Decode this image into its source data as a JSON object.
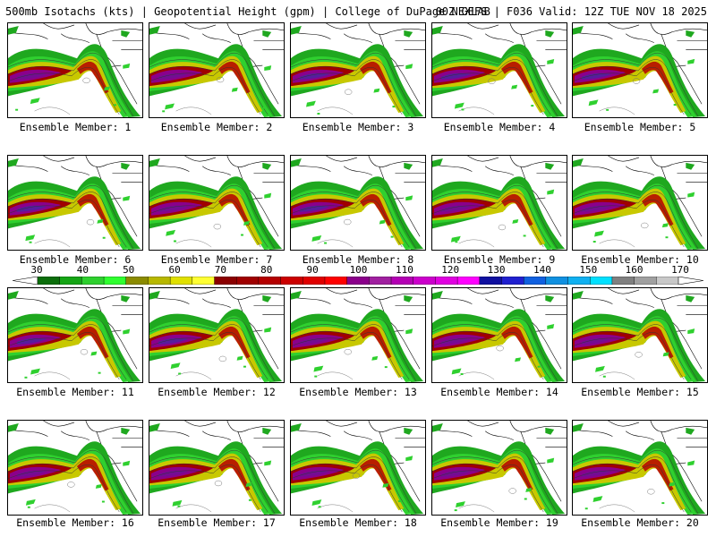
{
  "header": {
    "left": "500mb Isotachs (kts) | Geopotential Height (gpm) | College of DuPage NEXLAB",
    "right": "00Z GEFS | F036 Valid: 12Z TUE NOV 18 2025"
  },
  "panels": [
    {
      "label": "Ensemble Member: 1"
    },
    {
      "label": "Ensemble Member: 2"
    },
    {
      "label": "Ensemble Member: 3"
    },
    {
      "label": "Ensemble Member: 4"
    },
    {
      "label": "Ensemble Member: 5"
    },
    {
      "label": "Ensemble Member: 6"
    },
    {
      "label": "Ensemble Member: 7"
    },
    {
      "label": "Ensemble Member: 8"
    },
    {
      "label": "Ensemble Member: 9"
    },
    {
      "label": "Ensemble Member: 10"
    },
    {
      "label": "Ensemble Member: 11"
    },
    {
      "label": "Ensemble Member: 12"
    },
    {
      "label": "Ensemble Member: 13"
    },
    {
      "label": "Ensemble Member: 14"
    },
    {
      "label": "Ensemble Member: 15"
    },
    {
      "label": "Ensemble Member: 16"
    },
    {
      "label": "Ensemble Member: 17"
    },
    {
      "label": "Ensemble Member: 18"
    },
    {
      "label": "Ensemble Member: 19"
    },
    {
      "label": "Ensemble Member: 20"
    }
  ],
  "colorbar": {
    "labels": [
      "30",
      "40",
      "50",
      "60",
      "70",
      "80",
      "90",
      "100",
      "110",
      "120",
      "130",
      "140",
      "150",
      "160",
      "170"
    ],
    "colors": [
      "#0b6e0b",
      "#15a515",
      "#2ed02e",
      "#2fff2f",
      "#8b8b00",
      "#b8b800",
      "#e0e000",
      "#ffff33",
      "#8b0000",
      "#a00000",
      "#b50000",
      "#cc0000",
      "#e00000",
      "#ff0000",
      "#8b008b",
      "#a020a0",
      "#b400b4",
      "#cc00cc",
      "#e000e0",
      "#ff00ff",
      "#1010a0",
      "#2020d0",
      "#1060e0",
      "#1090e0",
      "#10b0f0",
      "#00e0ff",
      "#808080",
      "#a0a0a0",
      "#c8c8c8"
    ]
  }
}
